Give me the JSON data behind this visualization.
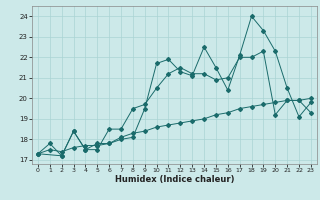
{
  "xlabel": "Humidex (Indice chaleur)",
  "bg_color": "#cce9e9",
  "grid_color": "#aad4d4",
  "line_color": "#1a6b6b",
  "xlim": [
    -0.5,
    23.5
  ],
  "ylim": [
    16.8,
    24.5
  ],
  "yticks": [
    17,
    18,
    19,
    20,
    21,
    22,
    23,
    24
  ],
  "xticks": [
    0,
    1,
    2,
    3,
    4,
    5,
    6,
    7,
    8,
    9,
    10,
    11,
    12,
    13,
    14,
    15,
    16,
    17,
    18,
    19,
    20,
    21,
    22,
    23
  ],
  "series1_x": [
    0,
    1,
    2,
    3,
    4,
    5,
    6,
    7,
    8,
    9,
    10,
    11,
    12,
    13,
    14,
    15,
    16,
    17,
    18,
    19,
    20,
    21,
    22,
    23
  ],
  "series1_y": [
    17.3,
    17.8,
    17.2,
    18.4,
    17.5,
    17.8,
    17.8,
    18.0,
    18.1,
    19.5,
    21.7,
    21.9,
    21.3,
    21.1,
    22.5,
    21.5,
    20.4,
    22.1,
    24.0,
    23.3,
    22.3,
    20.5,
    19.1,
    19.8
  ],
  "series2_x": [
    0,
    2,
    3,
    4,
    5,
    6,
    7,
    8,
    9,
    10,
    11,
    12,
    13,
    14,
    15,
    16,
    17,
    18,
    19,
    20,
    21,
    22,
    23
  ],
  "series2_y": [
    17.3,
    17.2,
    18.4,
    17.5,
    17.5,
    18.5,
    18.5,
    19.5,
    19.7,
    20.5,
    21.2,
    21.5,
    21.2,
    21.2,
    20.9,
    21.0,
    22.0,
    22.0,
    22.3,
    19.2,
    19.9,
    19.9,
    19.3
  ],
  "series3_x": [
    0,
    1,
    2,
    3,
    4,
    5,
    6,
    7,
    8,
    9,
    10,
    11,
    12,
    13,
    14,
    15,
    16,
    17,
    18,
    19,
    20,
    21,
    22,
    23
  ],
  "series3_y": [
    17.3,
    17.5,
    17.4,
    17.6,
    17.7,
    17.7,
    17.8,
    18.1,
    18.3,
    18.4,
    18.6,
    18.7,
    18.8,
    18.9,
    19.0,
    19.2,
    19.3,
    19.5,
    19.6,
    19.7,
    19.8,
    19.9,
    19.9,
    20.0
  ]
}
